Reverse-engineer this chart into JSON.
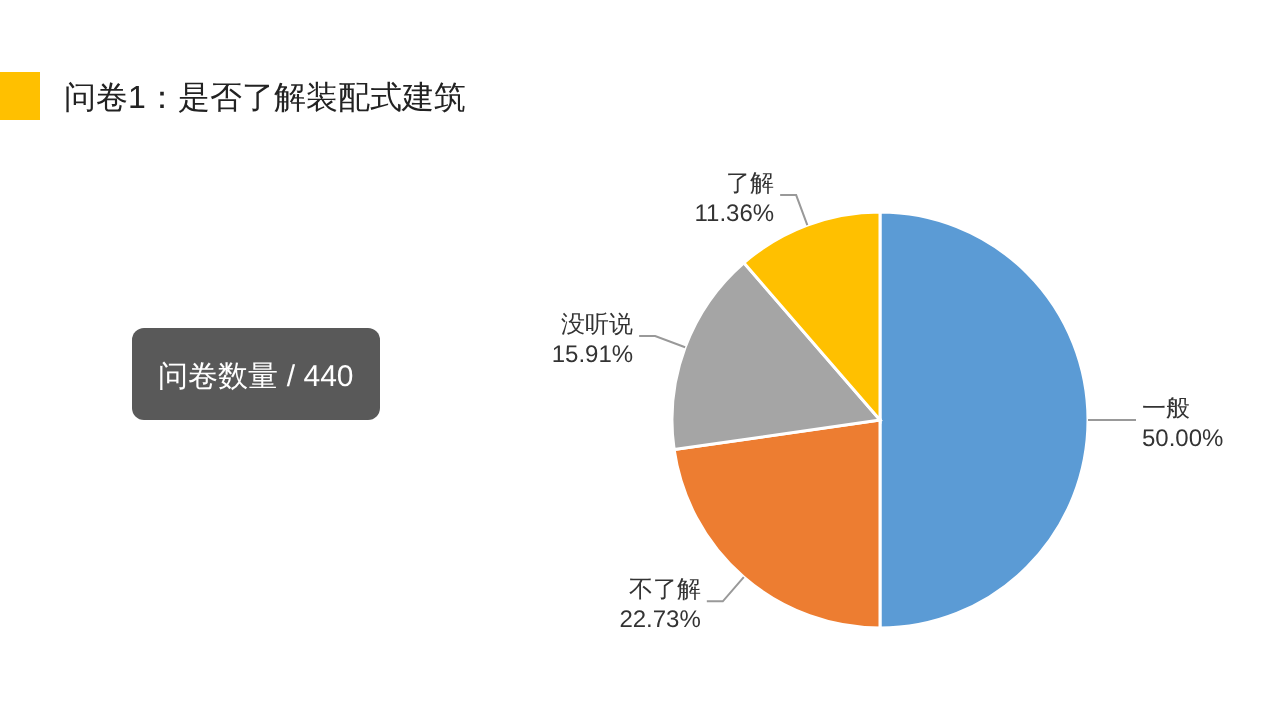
{
  "chart_data": {
    "type": "pie",
    "title": "问卷1：是否了解装配式建筑",
    "annotations": [
      "问卷数量 / 440"
    ],
    "categories": [
      "一般",
      "不了解",
      "没听说",
      "了解"
    ],
    "values": [
      50.0,
      22.73,
      15.91,
      11.36
    ],
    "value_labels": [
      "50.00%",
      "22.73%",
      "15.91%",
      "11.36%"
    ],
    "colors": [
      "#5b9bd5",
      "#ed7d31",
      "#a5a5a5",
      "#ffc000"
    ]
  }
}
